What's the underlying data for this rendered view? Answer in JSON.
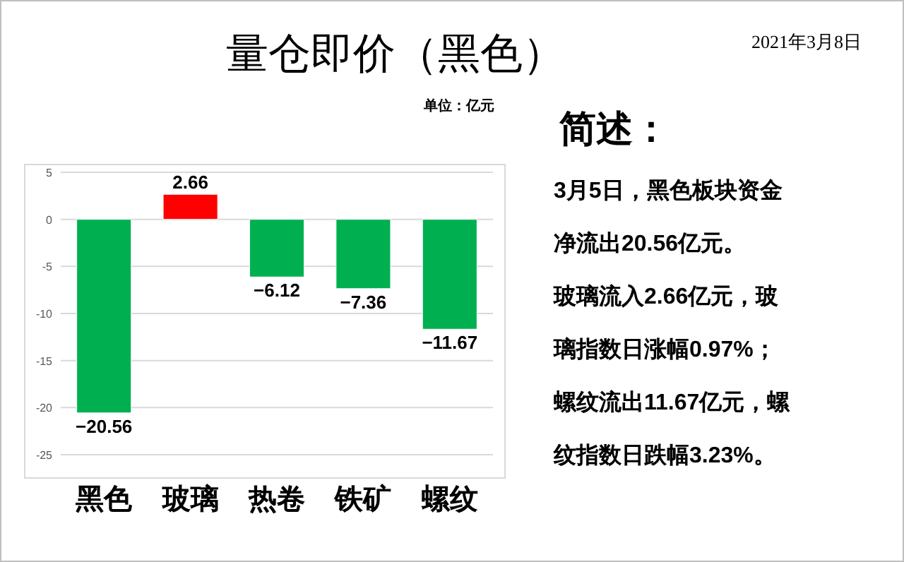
{
  "chart_data": {
    "type": "bar",
    "title": "量仓即价（黑色）",
    "categories": [
      "黑色",
      "玻璃",
      "热卷",
      "铁矿",
      "螺纹"
    ],
    "values": [
      -20.56,
      2.66,
      -6.12,
      -7.36,
      -11.67
    ],
    "colors": [
      "#00b050",
      "#ff0000",
      "#00b050",
      "#00b050",
      "#00b050"
    ],
    "ylim": [
      -25,
      5
    ],
    "yticks": [
      5,
      0,
      -5,
      -10,
      -15,
      -20,
      -25
    ],
    "grid": "y",
    "data_labels": true,
    "annotations": [
      "2021年3月8日",
      "单位：亿元",
      "简述：",
      "3月5日，黑色板块资金",
      "净流出20.56亿元。",
      "玻璃流入2.66亿元，玻",
      "璃指数日涨幅0.97%；",
      "螺纹流出11.67亿元，螺",
      "纹指数日跌幅3.23%。"
    ]
  }
}
